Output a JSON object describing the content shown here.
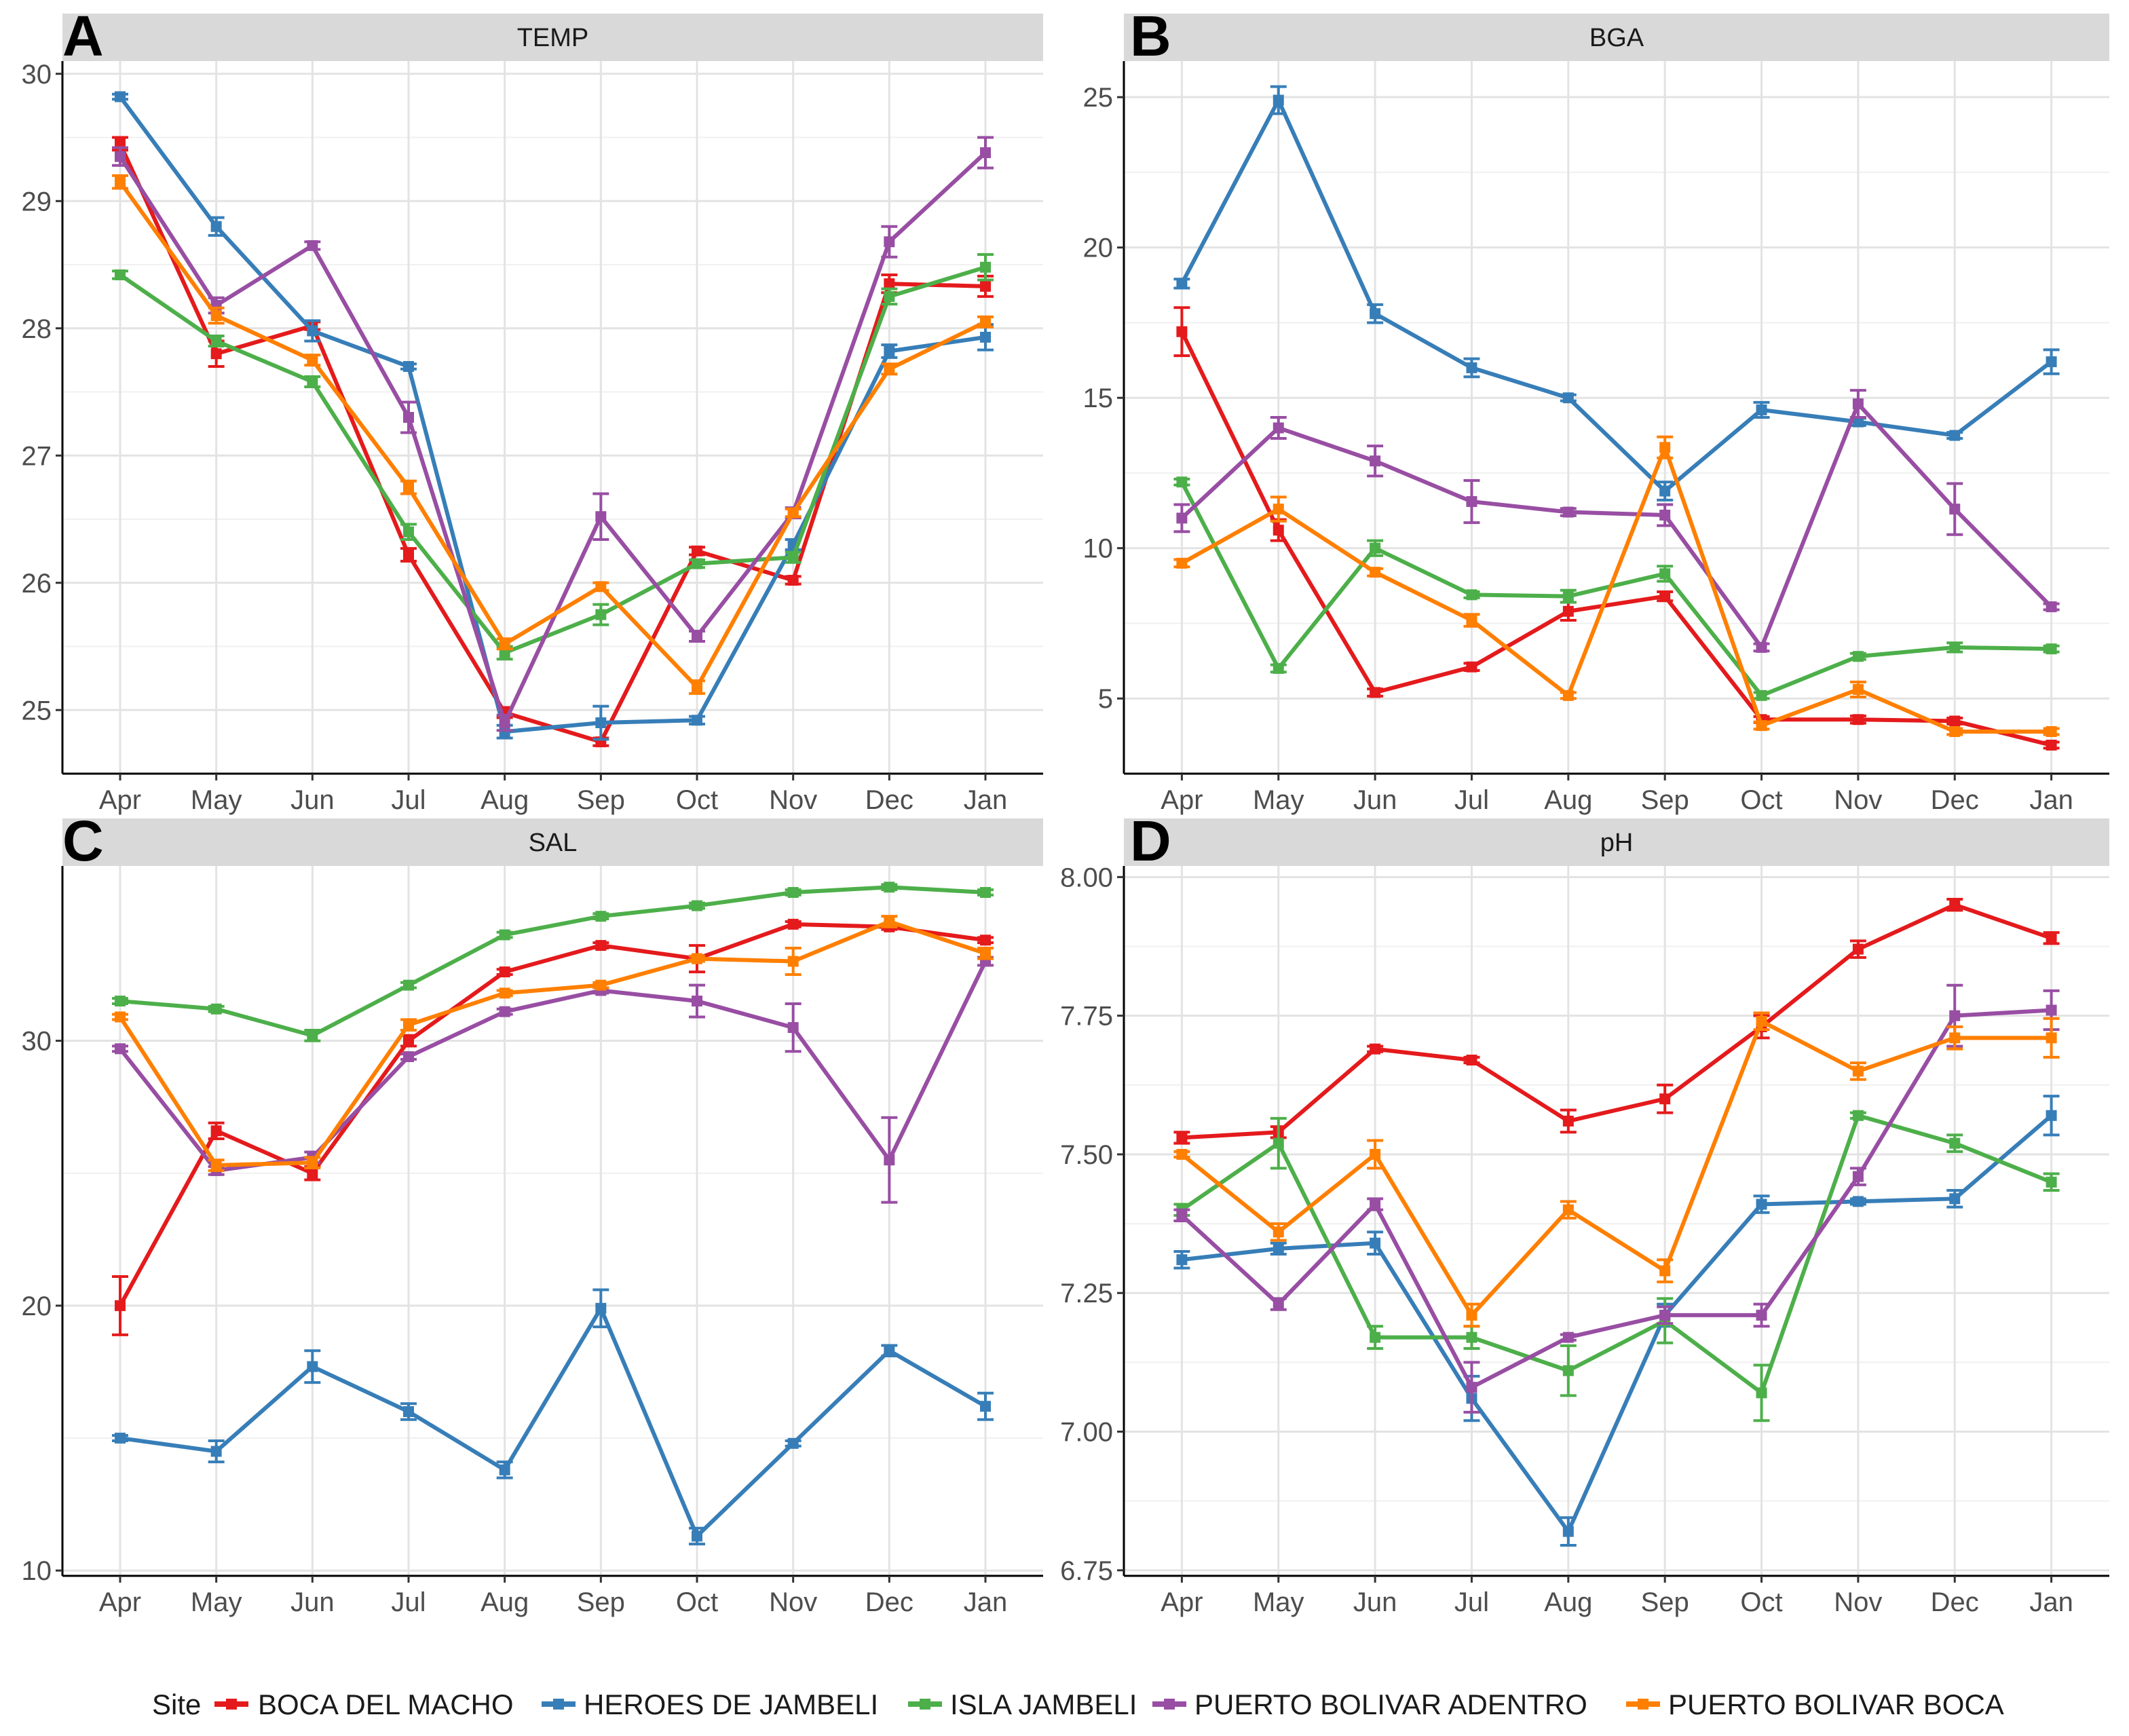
{
  "legend": {
    "title": "Site",
    "entries": [
      "BOCA DEL MACHO",
      "HEROES DE JAMBELI",
      "ISLA JAMBELI",
      "PUERTO BOLIVAR ADENTRO",
      "PUERTO BOLIVAR BOCA"
    ]
  },
  "colors": {
    "BOCA DEL MACHO": "#e41a1c",
    "HEROES DE JAMBELI": "#377eb8",
    "ISLA JAMBELI": "#4daf4a",
    "PUERTO BOLIVAR ADENTRO": "#984ea3",
    "PUERTO BOLIVAR BOCA": "#ff7f00"
  },
  "chart_data": [
    {
      "type": "line",
      "panel_label": "A",
      "title": "TEMP",
      "categories": [
        "Apr",
        "May",
        "Jun",
        "Jul",
        "Aug",
        "Sep",
        "Oct",
        "Nov",
        "Dec",
        "Jan"
      ],
      "ylim": [
        24.5,
        30.1
      ],
      "yticks": [
        25,
        26,
        27,
        28,
        29,
        30
      ],
      "grid": true,
      "series": [
        {
          "name": "BOCA DEL MACHO",
          "values": [
            29.45,
            27.8,
            28.02,
            26.22,
            24.98,
            24.75,
            26.25,
            26.02,
            28.35,
            28.33
          ],
          "errors": [
            0.05,
            0.1,
            0.03,
            0.05,
            0.04,
            0.03,
            0.03,
            0.03,
            0.07,
            0.08
          ]
        },
        {
          "name": "HEROES DE JAMBELI",
          "values": [
            29.82,
            28.8,
            27.98,
            27.7,
            24.83,
            24.9,
            24.92,
            26.3,
            27.82,
            27.93
          ],
          "errors": [
            0.02,
            0.07,
            0.08,
            0.02,
            0.05,
            0.13,
            0.03,
            0.04,
            0.05,
            0.1
          ]
        },
        {
          "name": "ISLA JAMBELI",
          "values": [
            28.42,
            27.9,
            27.58,
            26.4,
            25.45,
            25.75,
            26.15,
            26.2,
            28.25,
            28.48
          ],
          "errors": [
            0.03,
            0.04,
            0.04,
            0.06,
            0.05,
            0.08,
            0.03,
            0.04,
            0.06,
            0.1
          ]
        },
        {
          "name": "PUERTO BOLIVAR ADENTRO",
          "values": [
            29.35,
            28.18,
            28.65,
            27.3,
            24.9,
            26.52,
            25.58,
            26.55,
            28.68,
            29.38
          ],
          "errors": [
            0.07,
            0.06,
            0.03,
            0.12,
            0.06,
            0.18,
            0.04,
            0.04,
            0.12,
            0.12
          ]
        },
        {
          "name": "PUERTO BOLIVAR BOCA",
          "values": [
            29.15,
            28.1,
            27.75,
            26.75,
            25.52,
            25.97,
            25.18,
            26.55,
            27.68,
            28.05
          ],
          "errors": [
            0.05,
            0.06,
            0.04,
            0.05,
            0.04,
            0.03,
            0.05,
            0.03,
            0.04,
            0.04
          ]
        }
      ]
    },
    {
      "type": "line",
      "panel_label": "B",
      "title": "BGA",
      "categories": [
        "Apr",
        "May",
        "Jun",
        "Jul",
        "Aug",
        "Sep",
        "Oct",
        "Nov",
        "Dec",
        "Jan"
      ],
      "ylim": [
        2.5,
        26.2
      ],
      "yticks": [
        5,
        10,
        15,
        20,
        25
      ],
      "grid": true,
      "series": [
        {
          "name": "BOCA DEL MACHO",
          "values": [
            17.2,
            10.6,
            5.2,
            6.05,
            7.9,
            8.4,
            4.3,
            4.3,
            4.25,
            3.45
          ],
          "errors": [
            0.8,
            0.35,
            0.12,
            0.12,
            0.3,
            0.15,
            0.1,
            0.12,
            0.1,
            0.1
          ]
        },
        {
          "name": "HEROES DE JAMBELI",
          "values": [
            18.8,
            24.9,
            17.8,
            16.0,
            15.0,
            11.9,
            14.6,
            14.2,
            13.75,
            16.2
          ],
          "errors": [
            0.15,
            0.45,
            0.3,
            0.3,
            0.1,
            0.3,
            0.25,
            0.12,
            0.1,
            0.4
          ]
        },
        {
          "name": "ISLA JAMBELI",
          "values": [
            12.2,
            6.0,
            10.0,
            8.45,
            8.4,
            9.15,
            5.1,
            6.4,
            6.7,
            6.65
          ],
          "errors": [
            0.1,
            0.12,
            0.25,
            0.1,
            0.2,
            0.25,
            0.1,
            0.1,
            0.15,
            0.1
          ]
        },
        {
          "name": "PUERTO BOLIVAR ADENTRO",
          "values": [
            11.0,
            14.0,
            12.9,
            11.55,
            11.2,
            11.1,
            6.7,
            14.8,
            11.3,
            8.05
          ],
          "errors": [
            0.45,
            0.35,
            0.5,
            0.7,
            0.12,
            0.35,
            0.12,
            0.45,
            0.85,
            0.1
          ]
        },
        {
          "name": "PUERTO BOLIVAR BOCA",
          "values": [
            9.5,
            11.3,
            9.2,
            7.6,
            5.1,
            13.35,
            4.1,
            5.3,
            3.9,
            3.9
          ],
          "errors": [
            0.12,
            0.4,
            0.12,
            0.2,
            0.1,
            0.35,
            0.12,
            0.25,
            0.1,
            0.1
          ]
        }
      ]
    },
    {
      "type": "line",
      "panel_label": "C",
      "title": "SAL",
      "categories": [
        "Apr",
        "May",
        "Jun",
        "Jul",
        "Aug",
        "Sep",
        "Oct",
        "Nov",
        "Dec",
        "Jan"
      ],
      "ylim": [
        9.8,
        36.6
      ],
      "yticks": [
        10,
        20,
        30
      ],
      "grid": true,
      "series": [
        {
          "name": "BOCA DEL MACHO",
          "values": [
            20.0,
            26.6,
            25.0,
            30.0,
            32.6,
            33.6,
            33.1,
            34.4,
            34.3,
            33.8
          ],
          "errors": [
            1.1,
            0.3,
            0.25,
            0.2,
            0.1,
            0.1,
            0.5,
            0.1,
            0.1,
            0.1
          ]
        },
        {
          "name": "HEROES DE JAMBELI",
          "values": [
            15.0,
            14.5,
            17.7,
            16.0,
            13.8,
            19.9,
            11.3,
            14.8,
            18.3,
            16.2
          ],
          "errors": [
            0.1,
            0.4,
            0.6,
            0.3,
            0.3,
            0.7,
            0.3,
            0.1,
            0.2,
            0.5
          ]
        },
        {
          "name": "ISLA JAMBELI",
          "values": [
            31.5,
            31.2,
            30.2,
            32.1,
            34.0,
            34.7,
            35.1,
            35.6,
            35.8,
            35.6
          ],
          "errors": [
            0.1,
            0.1,
            0.2,
            0.1,
            0.1,
            0.1,
            0.1,
            0.1,
            0.1,
            0.1
          ]
        },
        {
          "name": "PUERTO BOLIVAR ADENTRO",
          "values": [
            29.7,
            25.1,
            25.6,
            29.4,
            31.1,
            31.9,
            31.5,
            30.5,
            25.5,
            33.0
          ],
          "errors": [
            0.1,
            0.15,
            0.2,
            0.1,
            0.1,
            0.1,
            0.6,
            0.9,
            1.6,
            0.15
          ]
        },
        {
          "name": "PUERTO BOLIVAR BOCA",
          "values": [
            30.9,
            25.3,
            25.4,
            30.6,
            31.8,
            32.1,
            33.1,
            33.0,
            34.5,
            33.3
          ],
          "errors": [
            0.1,
            0.2,
            0.2,
            0.2,
            0.1,
            0.1,
            0.1,
            0.5,
            0.2,
            0.2
          ]
        }
      ]
    },
    {
      "type": "line",
      "panel_label": "D",
      "title": "pH",
      "categories": [
        "Apr",
        "May",
        "Jun",
        "Jul",
        "Aug",
        "Sep",
        "Oct",
        "Nov",
        "Dec",
        "Jan"
      ],
      "ylim": [
        6.74,
        8.02
      ],
      "yticks": [
        6.75,
        7.0,
        7.25,
        7.5,
        7.75,
        8.0
      ],
      "ytick_labels": [
        "6.75",
        "7.00",
        "7.25",
        "7.50",
        "7.75",
        "8.00"
      ],
      "grid": true,
      "series": [
        {
          "name": "BOCA DEL MACHO",
          "values": [
            7.53,
            7.54,
            7.69,
            7.67,
            7.56,
            7.6,
            7.73,
            7.87,
            7.95,
            7.89
          ],
          "errors": [
            0.01,
            0.01,
            0.005,
            0.005,
            0.02,
            0.025,
            0.02,
            0.015,
            0.01,
            0.01
          ]
        },
        {
          "name": "HEROES DE JAMBELI",
          "values": [
            7.31,
            7.33,
            7.34,
            7.06,
            6.82,
            7.21,
            7.41,
            7.415,
            7.42,
            7.57
          ],
          "errors": [
            0.015,
            0.01,
            0.02,
            0.04,
            0.025,
            0.02,
            0.015,
            0.005,
            0.015,
            0.035
          ]
        },
        {
          "name": "ISLA JAMBELI",
          "values": [
            7.4,
            7.52,
            7.17,
            7.17,
            7.11,
            7.2,
            7.07,
            7.57,
            7.52,
            7.45
          ],
          "errors": [
            0.01,
            0.045,
            0.02,
            0.02,
            0.045,
            0.04,
            0.05,
            0.005,
            0.015,
            0.015
          ]
        },
        {
          "name": "PUERTO BOLIVAR ADENTRO",
          "values": [
            7.39,
            7.23,
            7.41,
            7.08,
            7.17,
            7.21,
            7.21,
            7.46,
            7.75,
            7.76
          ],
          "errors": [
            0.01,
            0.01,
            0.01,
            0.045,
            0.005,
            0.015,
            0.02,
            0.015,
            0.055,
            0.035
          ]
        },
        {
          "name": "PUERTO BOLIVAR BOCA",
          "values": [
            7.5,
            7.36,
            7.5,
            7.21,
            7.4,
            7.29,
            7.74,
            7.65,
            7.71,
            7.71
          ],
          "errors": [
            0.005,
            0.015,
            0.025,
            0.02,
            0.015,
            0.02,
            0.015,
            0.015,
            0.02,
            0.035
          ]
        }
      ]
    }
  ]
}
